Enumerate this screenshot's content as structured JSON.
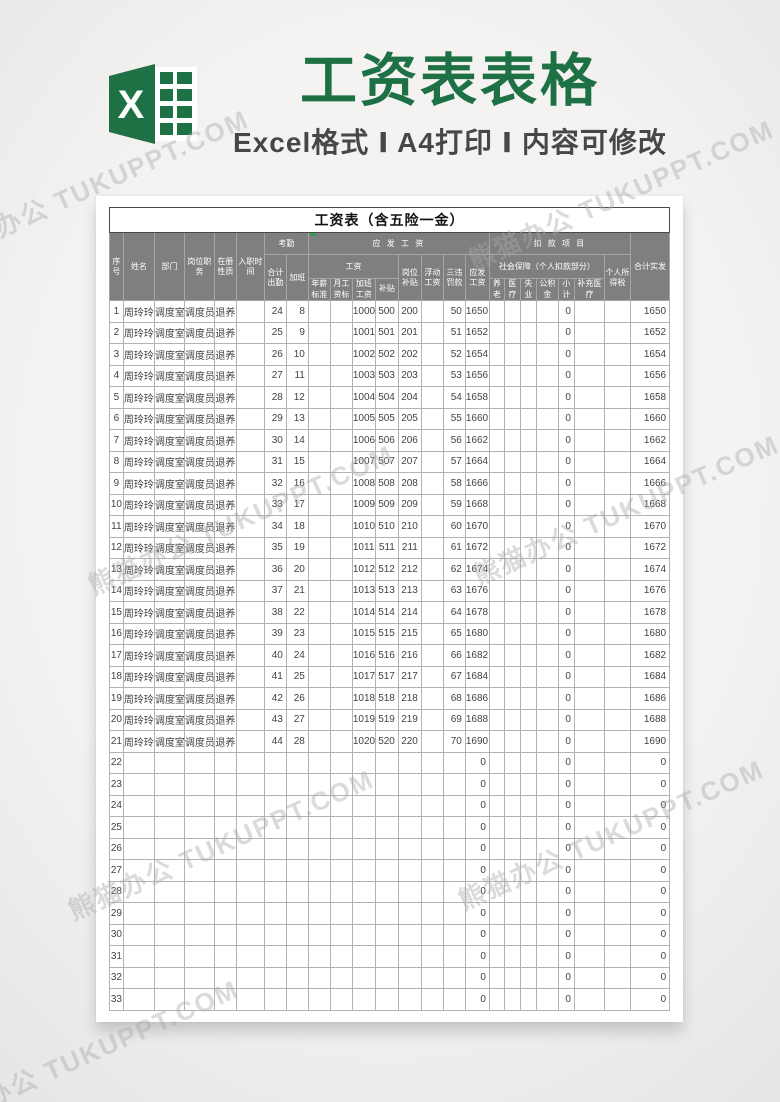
{
  "banner": {
    "title": "工资表表格",
    "subtitle": "Excel格式 Ⅰ A4打印 Ⅰ 内容可修改",
    "title_color": "#1e7145",
    "subtitle_color": "#474747",
    "excel_icon_letter": "X"
  },
  "watermark": {
    "text": "熊猫办公 TUKUPPT.COM"
  },
  "sheet": {
    "title": "工资表（含五险一金）",
    "header": {
      "seq": "序号",
      "name": "姓名",
      "dept": "部门",
      "position": "岗位职务",
      "status": "在册性质",
      "hire_date": "入职时间",
      "attendance_group": "考勤",
      "payable_group": "应 发 工 资",
      "deduction_group": "扣 款 项 目",
      "total_paid": "合计实发",
      "total_attend": "合计出勤",
      "overtime": "加班",
      "wage_group": "工资",
      "post_subsidy": "岗位补贴",
      "floating_wage": "浮动工资",
      "violation_fine": "三违罚款",
      "payable_wage": "应发工资",
      "social_security_group": "社会保障（个人扣款部分）",
      "income_tax": "个人所得税",
      "annual_std": "年薪标准",
      "monthly_std": "月工资标",
      "overtime_pay": "加班工资",
      "subsidy": "补贴",
      "pension": "养老",
      "medical": "医疗",
      "unemployment": "失业",
      "housing_fund": "公积金",
      "subtotal": "小计",
      "supp_medical": "补充医疗"
    },
    "rows": [
      [
        "1",
        "周玲玲",
        "调度室",
        "调度员",
        "退养",
        "",
        "24",
        "8",
        "",
        "",
        "1000",
        "500",
        "200",
        "",
        "50",
        "1650",
        "",
        "",
        "",
        "",
        "0",
        "",
        "",
        "1650"
      ],
      [
        "2",
        "周玲玲",
        "调度室",
        "调度员",
        "退养",
        "",
        "25",
        "9",
        "",
        "",
        "1001",
        "501",
        "201",
        "",
        "51",
        "1652",
        "",
        "",
        "",
        "",
        "0",
        "",
        "",
        "1652"
      ],
      [
        "3",
        "周玲玲",
        "调度室",
        "调度员",
        "退养",
        "",
        "26",
        "10",
        "",
        "",
        "1002",
        "502",
        "202",
        "",
        "52",
        "1654",
        "",
        "",
        "",
        "",
        "0",
        "",
        "",
        "1654"
      ],
      [
        "4",
        "周玲玲",
        "调度室",
        "调度员",
        "退养",
        "",
        "27",
        "11",
        "",
        "",
        "1003",
        "503",
        "203",
        "",
        "53",
        "1656",
        "",
        "",
        "",
        "",
        "0",
        "",
        "",
        "1656"
      ],
      [
        "5",
        "周玲玲",
        "调度室",
        "调度员",
        "退养",
        "",
        "28",
        "12",
        "",
        "",
        "1004",
        "504",
        "204",
        "",
        "54",
        "1658",
        "",
        "",
        "",
        "",
        "0",
        "",
        "",
        "1658"
      ],
      [
        "6",
        "周玲玲",
        "调度室",
        "调度员",
        "退养",
        "",
        "29",
        "13",
        "",
        "",
        "1005",
        "505",
        "205",
        "",
        "55",
        "1660",
        "",
        "",
        "",
        "",
        "0",
        "",
        "",
        "1660"
      ],
      [
        "7",
        "周玲玲",
        "调度室",
        "调度员",
        "退养",
        "",
        "30",
        "14",
        "",
        "",
        "1006",
        "506",
        "206",
        "",
        "56",
        "1662",
        "",
        "",
        "",
        "",
        "0",
        "",
        "",
        "1662"
      ],
      [
        "8",
        "周玲玲",
        "调度室",
        "调度员",
        "退养",
        "",
        "31",
        "15",
        "",
        "",
        "1007",
        "507",
        "207",
        "",
        "57",
        "1664",
        "",
        "",
        "",
        "",
        "0",
        "",
        "",
        "1664"
      ],
      [
        "9",
        "周玲玲",
        "调度室",
        "调度员",
        "退养",
        "",
        "32",
        "16",
        "",
        "",
        "1008",
        "508",
        "208",
        "",
        "58",
        "1666",
        "",
        "",
        "",
        "",
        "0",
        "",
        "",
        "1666"
      ],
      [
        "10",
        "周玲玲",
        "调度室",
        "调度员",
        "退养",
        "",
        "33",
        "17",
        "",
        "",
        "1009",
        "509",
        "209",
        "",
        "59",
        "1668",
        "",
        "",
        "",
        "",
        "0",
        "",
        "",
        "1668"
      ],
      [
        "11",
        "周玲玲",
        "调度室",
        "调度员",
        "退养",
        "",
        "34",
        "18",
        "",
        "",
        "1010",
        "510",
        "210",
        "",
        "60",
        "1670",
        "",
        "",
        "",
        "",
        "0",
        "",
        "",
        "1670"
      ],
      [
        "12",
        "周玲玲",
        "调度室",
        "调度员",
        "退养",
        "",
        "35",
        "19",
        "",
        "",
        "1011",
        "511",
        "211",
        "",
        "61",
        "1672",
        "",
        "",
        "",
        "",
        "0",
        "",
        "",
        "1672"
      ],
      [
        "13",
        "周玲玲",
        "调度室",
        "调度员",
        "退养",
        "",
        "36",
        "20",
        "",
        "",
        "1012",
        "512",
        "212",
        "",
        "62",
        "1674",
        "",
        "",
        "",
        "",
        "0",
        "",
        "",
        "1674"
      ],
      [
        "14",
        "周玲玲",
        "调度室",
        "调度员",
        "退养",
        "",
        "37",
        "21",
        "",
        "",
        "1013",
        "513",
        "213",
        "",
        "63",
        "1676",
        "",
        "",
        "",
        "",
        "0",
        "",
        "",
        "1676"
      ],
      [
        "15",
        "周玲玲",
        "调度室",
        "调度员",
        "退养",
        "",
        "38",
        "22",
        "",
        "",
        "1014",
        "514",
        "214",
        "",
        "64",
        "1678",
        "",
        "",
        "",
        "",
        "0",
        "",
        "",
        "1678"
      ],
      [
        "16",
        "周玲玲",
        "调度室",
        "调度员",
        "退养",
        "",
        "39",
        "23",
        "",
        "",
        "1015",
        "515",
        "215",
        "",
        "65",
        "1680",
        "",
        "",
        "",
        "",
        "0",
        "",
        "",
        "1680"
      ],
      [
        "17",
        "周玲玲",
        "调度室",
        "调度员",
        "退养",
        "",
        "40",
        "24",
        "",
        "",
        "1016",
        "516",
        "216",
        "",
        "66",
        "1682",
        "",
        "",
        "",
        "",
        "0",
        "",
        "",
        "1682"
      ],
      [
        "18",
        "周玲玲",
        "调度室",
        "调度员",
        "退养",
        "",
        "41",
        "25",
        "",
        "",
        "1017",
        "517",
        "217",
        "",
        "67",
        "1684",
        "",
        "",
        "",
        "",
        "0",
        "",
        "",
        "1684"
      ],
      [
        "19",
        "周玲玲",
        "调度室",
        "调度员",
        "退养",
        "",
        "42",
        "26",
        "",
        "",
        "1018",
        "518",
        "218",
        "",
        "68",
        "1686",
        "",
        "",
        "",
        "",
        "0",
        "",
        "",
        "1686"
      ],
      [
        "20",
        "周玲玲",
        "调度室",
        "调度员",
        "退养",
        "",
        "43",
        "27",
        "",
        "",
        "1019",
        "519",
        "219",
        "",
        "69",
        "1688",
        "",
        "",
        "",
        "",
        "0",
        "",
        "",
        "1688"
      ],
      [
        "21",
        "周玲玲",
        "调度室",
        "调度员",
        "退养",
        "",
        "44",
        "28",
        "",
        "",
        "1020",
        "520",
        "220",
        "",
        "70",
        "1690",
        "",
        "",
        "",
        "",
        "0",
        "",
        "",
        "1690"
      ],
      [
        "22",
        "",
        "",
        "",
        "",
        "",
        "",
        "",
        "",
        "",
        "",
        "",
        "",
        "",
        "",
        "0",
        "",
        "",
        "",
        "",
        "0",
        "",
        "",
        "0"
      ],
      [
        "23",
        "",
        "",
        "",
        "",
        "",
        "",
        "",
        "",
        "",
        "",
        "",
        "",
        "",
        "",
        "0",
        "",
        "",
        "",
        "",
        "0",
        "",
        "",
        "0"
      ],
      [
        "24",
        "",
        "",
        "",
        "",
        "",
        "",
        "",
        "",
        "",
        "",
        "",
        "",
        "",
        "",
        "0",
        "",
        "",
        "",
        "",
        "0",
        "",
        "",
        "0"
      ],
      [
        "25",
        "",
        "",
        "",
        "",
        "",
        "",
        "",
        "",
        "",
        "",
        "",
        "",
        "",
        "",
        "0",
        "",
        "",
        "",
        "",
        "0",
        "",
        "",
        "0"
      ],
      [
        "26",
        "",
        "",
        "",
        "",
        "",
        "",
        "",
        "",
        "",
        "",
        "",
        "",
        "",
        "",
        "0",
        "",
        "",
        "",
        "",
        "0",
        "",
        "",
        "0"
      ],
      [
        "27",
        "",
        "",
        "",
        "",
        "",
        "",
        "",
        "",
        "",
        "",
        "",
        "",
        "",
        "",
        "0",
        "",
        "",
        "",
        "",
        "0",
        "",
        "",
        "0"
      ],
      [
        "28",
        "",
        "",
        "",
        "",
        "",
        "",
        "",
        "",
        "",
        "",
        "",
        "",
        "",
        "",
        "0",
        "",
        "",
        "",
        "",
        "0",
        "",
        "",
        "0"
      ],
      [
        "29",
        "",
        "",
        "",
        "",
        "",
        "",
        "",
        "",
        "",
        "",
        "",
        "",
        "",
        "",
        "0",
        "",
        "",
        "",
        "",
        "0",
        "",
        "",
        "0"
      ],
      [
        "30",
        "",
        "",
        "",
        "",
        "",
        "",
        "",
        "",
        "",
        "",
        "",
        "",
        "",
        "",
        "0",
        "",
        "",
        "",
        "",
        "0",
        "",
        "",
        "0"
      ],
      [
        "31",
        "",
        "",
        "",
        "",
        "",
        "",
        "",
        "",
        "",
        "",
        "",
        "",
        "",
        "",
        "0",
        "",
        "",
        "",
        "",
        "0",
        "",
        "",
        "0"
      ],
      [
        "32",
        "",
        "",
        "",
        "",
        "",
        "",
        "",
        "",
        "",
        "",
        "",
        "",
        "",
        "",
        "0",
        "",
        "",
        "",
        "",
        "0",
        "",
        "",
        "0"
      ],
      [
        "33",
        "",
        "",
        "",
        "",
        "",
        "",
        "",
        "",
        "",
        "",
        "",
        "",
        "",
        "",
        "0",
        "",
        "",
        "",
        "",
        "0",
        "",
        "",
        "0"
      ]
    ]
  }
}
